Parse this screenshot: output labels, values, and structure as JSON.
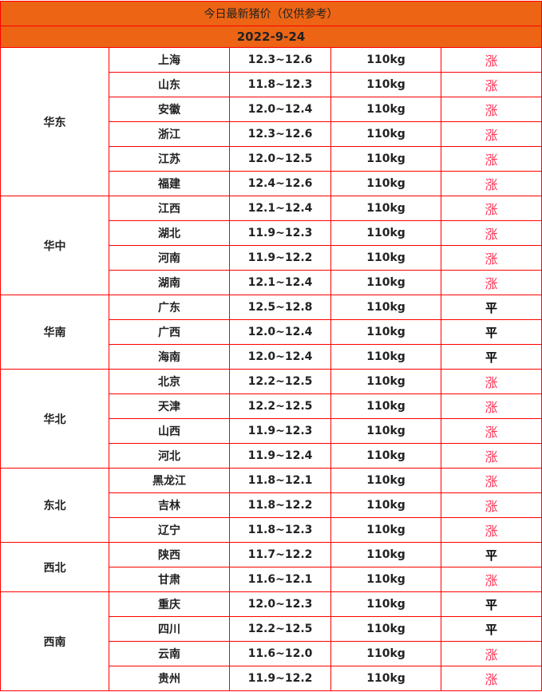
{
  "title": "今日最新猪价（仅供参考）",
  "date": "2022-9-24",
  "colors": {
    "header_bg": "#ec6414",
    "border": "#ff0000",
    "rise": "#ff3355",
    "flat": "#000000"
  },
  "regions": [
    {
      "name": "华东",
      "rows": [
        {
          "province": "上海",
          "price": "12.3~12.6",
          "weight": "110kg",
          "trend": "涨"
        },
        {
          "province": "山东",
          "price": "11.8~12.3",
          "weight": "110kg",
          "trend": "涨"
        },
        {
          "province": "安徽",
          "price": "12.0~12.4",
          "weight": "110kg",
          "trend": "涨"
        },
        {
          "province": "浙江",
          "price": "12.3~12.6",
          "weight": "110kg",
          "trend": "涨"
        },
        {
          "province": "江苏",
          "price": "12.0~12.5",
          "weight": "110kg",
          "trend": "涨"
        },
        {
          "province": "福建",
          "price": "12.4~12.6",
          "weight": "110kg",
          "trend": "涨"
        }
      ]
    },
    {
      "name": "华中",
      "rows": [
        {
          "province": "江西",
          "price": "12.1~12.4",
          "weight": "110kg",
          "trend": "涨"
        },
        {
          "province": "湖北",
          "price": "11.9~12.3",
          "weight": "110kg",
          "trend": "涨"
        },
        {
          "province": "河南",
          "price": "11.9~12.2",
          "weight": "110kg",
          "trend": "涨"
        },
        {
          "province": "湖南",
          "price": "12.1~12.4",
          "weight": "110kg",
          "trend": "涨"
        }
      ]
    },
    {
      "name": "华南",
      "rows": [
        {
          "province": "广东",
          "price": "12.5~12.8",
          "weight": "110kg",
          "trend": "平"
        },
        {
          "province": "广西",
          "price": "12.0~12.4",
          "weight": "110kg",
          "trend": "平"
        },
        {
          "province": "海南",
          "price": "12.0~12.4",
          "weight": "110kg",
          "trend": "平"
        }
      ]
    },
    {
      "name": "华北",
      "rows": [
        {
          "province": "北京",
          "price": "12.2~12.5",
          "weight": "110kg",
          "trend": "涨"
        },
        {
          "province": "天津",
          "price": "12.2~12.5",
          "weight": "110kg",
          "trend": "涨"
        },
        {
          "province": "山西",
          "price": "11.9~12.3",
          "weight": "110kg",
          "trend": "涨"
        },
        {
          "province": "河北",
          "price": "11.9~12.4",
          "weight": "110kg",
          "trend": "涨"
        }
      ]
    },
    {
      "name": "东北",
      "rows": [
        {
          "province": "黑龙江",
          "price": "11.8~12.1",
          "weight": "110kg",
          "trend": "涨"
        },
        {
          "province": "吉林",
          "price": "11.8~12.2",
          "weight": "110kg",
          "trend": "涨"
        },
        {
          "province": "辽宁",
          "price": "11.8~12.3",
          "weight": "110kg",
          "trend": "涨"
        }
      ]
    },
    {
      "name": "西北",
      "rows": [
        {
          "province": "陕西",
          "price": "11.7~12.2",
          "weight": "110kg",
          "trend": "平"
        },
        {
          "province": "甘肃",
          "price": "11.6~12.1",
          "weight": "110kg",
          "trend": "涨"
        }
      ]
    },
    {
      "name": "西南",
      "rows": [
        {
          "province": "重庆",
          "price": "12.0~12.3",
          "weight": "110kg",
          "trend": "平"
        },
        {
          "province": "四川",
          "price": "12.2~12.5",
          "weight": "110kg",
          "trend": "平"
        },
        {
          "province": "云南",
          "price": "11.6~12.0",
          "weight": "110kg",
          "trend": "涨"
        },
        {
          "province": "贵州",
          "price": "11.9~12.2",
          "weight": "110kg",
          "trend": "涨"
        }
      ]
    }
  ]
}
